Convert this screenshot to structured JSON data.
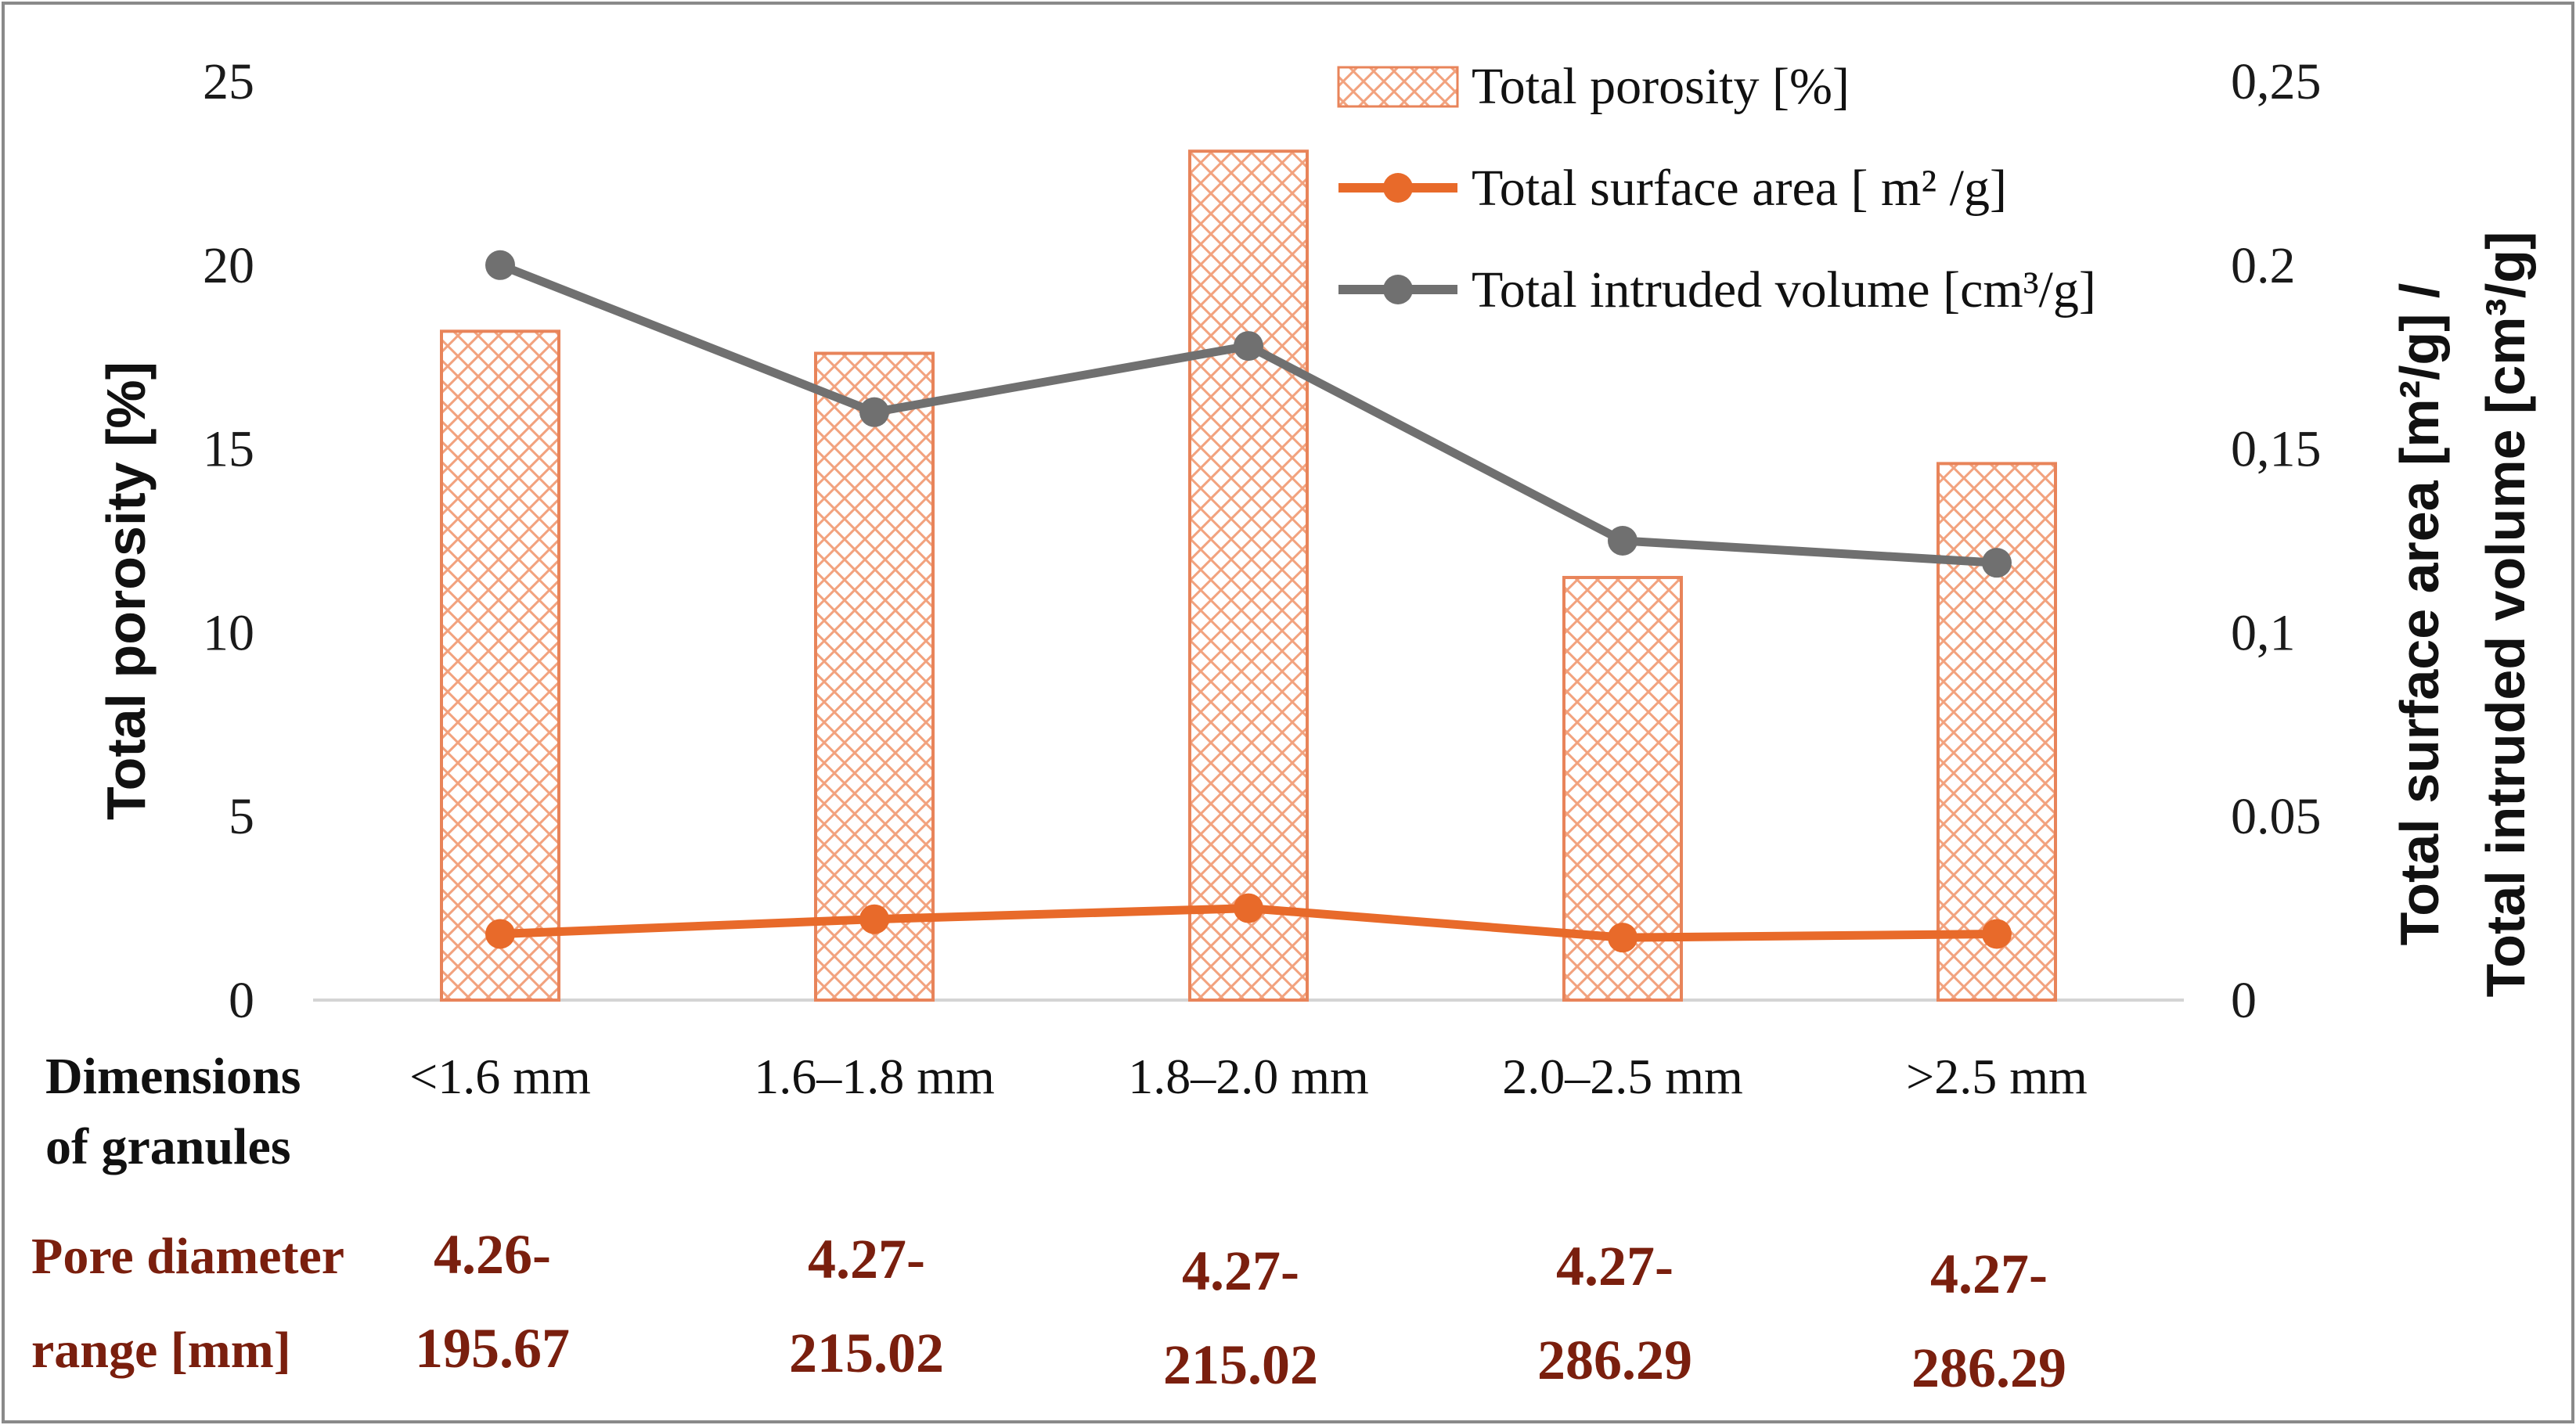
{
  "chart_data": {
    "type": "bar",
    "categories": [
      "<1.6 mm",
      "1.6–1.8 mm",
      "1.8–2.0 mm",
      "2.0–2.5 mm",
      ">2.5 mm"
    ],
    "series": [
      {
        "name": "Total porosity [%]",
        "kind": "bar",
        "axis": "left",
        "color": "#e8845a",
        "values": [
          18.2,
          17.6,
          23.1,
          11.5,
          14.6
        ]
      },
      {
        "name": "Total surface area [ m² /g]",
        "kind": "line",
        "axis": "right",
        "color": "#e86a2a",
        "values": [
          0.018,
          0.022,
          0.025,
          0.017,
          0.018
        ]
      },
      {
        "name": "Total intruded volume [cm³/g]",
        "kind": "line",
        "axis": "right",
        "color": "#707070",
        "values": [
          0.2,
          0.16,
          0.178,
          0.125,
          0.119
        ]
      }
    ],
    "ylim": [
      0,
      25
    ],
    "y2lim": [
      0,
      0.25
    ],
    "yticks": [
      "0",
      "5",
      "10",
      "15",
      "20",
      "25"
    ],
    "y2ticks": [
      "0",
      "0.05",
      "0,1",
      "0,15",
      "0.2",
      "0,25"
    ],
    "ylabel": "Total porosity [%]",
    "y2label": [
      "Total surface area [m²/g] /",
      "Total intruded volume [cm³/g]"
    ],
    "legend": "top-right"
  },
  "table": {
    "dimensions_label": [
      "Dimensions",
      "of granules"
    ],
    "pore_label": [
      "Pore diameter",
      "range [mm]"
    ],
    "pore_ranges": [
      [
        "4.26-",
        "195.67"
      ],
      [
        "4.27-",
        "215.02"
      ],
      [
        "4.27-",
        "215.02"
      ],
      [
        "4.27-",
        "286.29"
      ],
      [
        "4.27-",
        "286.29"
      ]
    ]
  }
}
